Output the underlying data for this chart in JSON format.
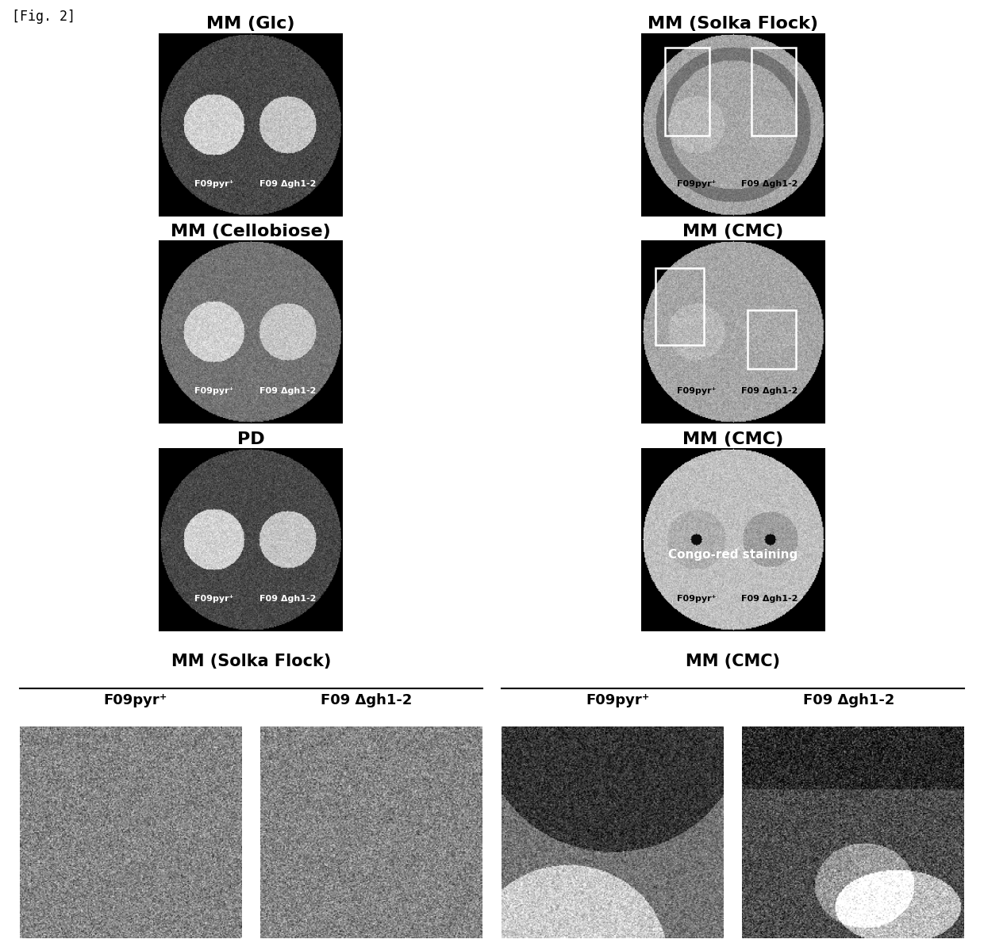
{
  "fig_label": "[Fig. 2]",
  "background_color": "#ffffff",
  "row0_titles": [
    "MM (Glc)",
    "MM (Solka Flock)"
  ],
  "row1_titles": [
    "MM (Cellobiose)",
    "MM (CMC)"
  ],
  "row2_titles": [
    "PD",
    "MM (CMC)"
  ],
  "row2_subtitle": "Congo-red staining",
  "bottom_group_titles": [
    "MM (Solka Flock)",
    "MM (CMC)"
  ],
  "bottom_sub_labels": [
    "F09pyr⁺",
    "F09 Δgh1-2",
    "F09pyr⁺",
    "F09 Δgh1-2"
  ],
  "label1": "F09pyr⁺",
  "label2": "F09 Δgh1-2",
  "title_fontsize": 16,
  "label_fontsize": 8,
  "sub_label_fontsize": 13,
  "section_title_fontsize": 15,
  "figlabel_fontsize": 12
}
